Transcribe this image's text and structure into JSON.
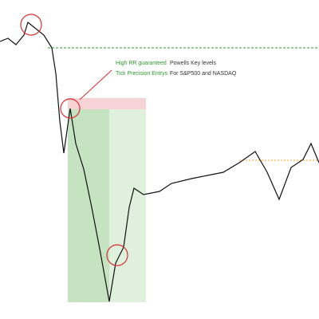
{
  "chart_data": {
    "type": "line",
    "annotations": [
      "High RR guaranteed",
      "Tick Precision Entrys",
      "Powells Key levels",
      "For S&P500 and NASDAQ"
    ],
    "x": [
      0,
      10,
      20,
      30,
      35,
      45,
      55,
      65,
      70,
      75,
      80,
      88,
      95,
      105,
      115,
      125,
      137,
      145,
      155,
      162,
      168,
      180,
      200,
      215,
      240,
      260,
      280,
      300,
      320,
      335,
      350,
      365,
      380,
      390,
      400
    ],
    "values": [
      87,
      88,
      86,
      89,
      93,
      91,
      89,
      85,
      77,
      62,
      52,
      66,
      55,
      47,
      35,
      22,
      5.5,
      17.5,
      22.5,
      35,
      41,
      39,
      40,
      42.5,
      44,
      45,
      46,
      49,
      52.5,
      46,
      37.5,
      47.5,
      50,
      55,
      49
    ],
    "color": "#111111",
    "xlim": [
      0,
      400
    ],
    "ylim": [
      0,
      100
    ]
  }
}
